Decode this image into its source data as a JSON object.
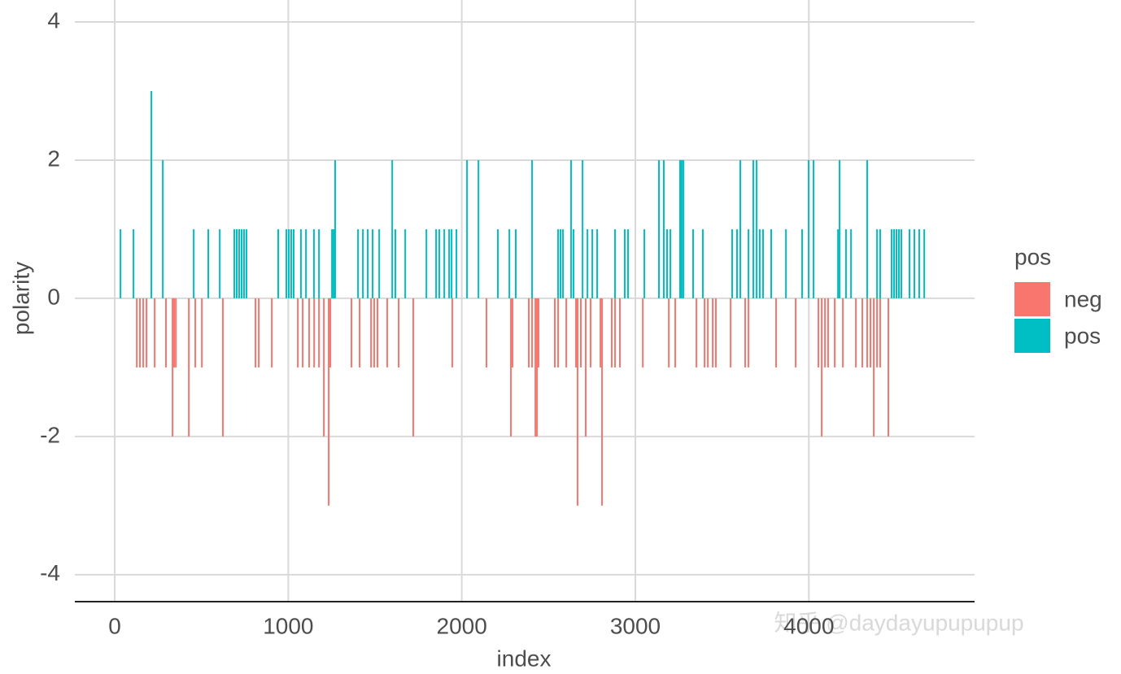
{
  "chart_data": {
    "type": "bar",
    "x_label": "index",
    "y_label": "polarity",
    "legend_title": "pos",
    "annotation": "知乎 @daydayupupupup",
    "xlim": [
      -230,
      4955
    ],
    "xticks": [
      0,
      1000,
      2000,
      3000,
      4000
    ],
    "ylim": [
      -4.39,
      4.2
    ],
    "yticks": [
      -4,
      -2,
      0,
      2,
      4
    ],
    "grid": true,
    "legend": "right",
    "series": [
      {
        "name": "neg",
        "color": "#F8766D",
        "x": [
          127,
          145,
          164,
          183,
          230,
          295,
          333,
          342,
          352,
          427,
          464,
          502,
          623,
          811,
          830,
          905,
          1055,
          1083,
          1120,
          1149,
          1177,
          1205,
          1233,
          1242,
          1364,
          1411,
          1477,
          1495,
          1514,
          1570,
          1636,
          1720,
          1945,
          2142,
          2283,
          2292,
          2386,
          2405,
          2424,
          2433,
          2442,
          2536,
          2555,
          2602,
          2658,
          2667,
          2686,
          2714,
          2742,
          2799,
          2808,
          2864,
          2883,
          2911,
          3043,
          3193,
          3230,
          3352,
          3399,
          3418,
          3446,
          3464,
          3549,
          3633,
          3652,
          3811,
          3924,
          4055,
          4074,
          4093,
          4111,
          4149,
          4196,
          4271,
          4308,
          4336,
          4355,
          4374,
          4393,
          4411,
          4458
        ],
        "values": [
          -1,
          -1,
          -1,
          -1,
          -1,
          -1,
          -2,
          -1,
          -1,
          -2,
          -1,
          -1,
          -2,
          -1,
          -1,
          -1,
          -1,
          -1,
          -1,
          -1,
          -1,
          -2,
          -3,
          -1,
          -1,
          -1,
          -1,
          -1,
          -1,
          -1,
          -1,
          -2,
          -1,
          -1,
          -2,
          -1,
          -1,
          -1,
          -2,
          -2,
          -1,
          -1,
          -1,
          -1,
          -1,
          -3,
          -1,
          -2,
          -1,
          -1,
          -3,
          -1,
          -1,
          -1,
          -1,
          -1,
          -1,
          -1,
          -1,
          -1,
          -1,
          -1,
          -1,
          -1,
          -1,
          -1,
          -1,
          -1,
          -2,
          -1,
          -1,
          -1,
          -1,
          -1,
          -1,
          -1,
          -1,
          -2,
          -1,
          -1,
          -2
        ]
      },
      {
        "name": "pos",
        "color": "#00BFC4",
        "x": [
          33,
          108,
          211,
          277,
          455,
          539,
          605,
          689,
          703,
          717,
          731,
          745,
          759,
          942,
          989,
          1003,
          1017,
          1031,
          1073,
          1102,
          1148,
          1177,
          1252,
          1261,
          1270,
          1402,
          1430,
          1458,
          1486,
          1524,
          1599,
          1617,
          1674,
          1796,
          1852,
          1870,
          1899,
          1927,
          1941,
          1969,
          2030,
          2096,
          2208,
          2274,
          2311,
          2405,
          2555,
          2569,
          2583,
          2630,
          2644,
          2696,
          2724,
          2752,
          2780,
          2883,
          2939,
          2958,
          3052,
          3136,
          3164,
          3183,
          3202,
          3258,
          3267,
          3277,
          3333,
          3389,
          3558,
          3586,
          3605,
          3652,
          3680,
          3699,
          3717,
          3736,
          3783,
          3868,
          3961,
          3999,
          4027,
          4168,
          4177,
          4214,
          4243,
          4336,
          4393,
          4411,
          4477,
          4491,
          4505,
          4519,
          4533,
          4580,
          4608,
          4636,
          4665
        ],
        "values": [
          1,
          1,
          3,
          2,
          1,
          1,
          1,
          1,
          1,
          1,
          1,
          1,
          1,
          1,
          1,
          1,
          1,
          1,
          1,
          1,
          1,
          1,
          1,
          1,
          2,
          1,
          1,
          1,
          1,
          1,
          2,
          1,
          1,
          1,
          1,
          1,
          1,
          1,
          1,
          1,
          2,
          2,
          1,
          1,
          1,
          2,
          1,
          1,
          1,
          2,
          1,
          2,
          1,
          1,
          1,
          1,
          1,
          1,
          1,
          2,
          2,
          1,
          1,
          2,
          2,
          2,
          1,
          1,
          1,
          1,
          2,
          1,
          2,
          2,
          1,
          1,
          1,
          1,
          1,
          2,
          2,
          1,
          2,
          1,
          1,
          2,
          1,
          1,
          1,
          1,
          1,
          1,
          1,
          1,
          1,
          1,
          1
        ]
      }
    ]
  }
}
